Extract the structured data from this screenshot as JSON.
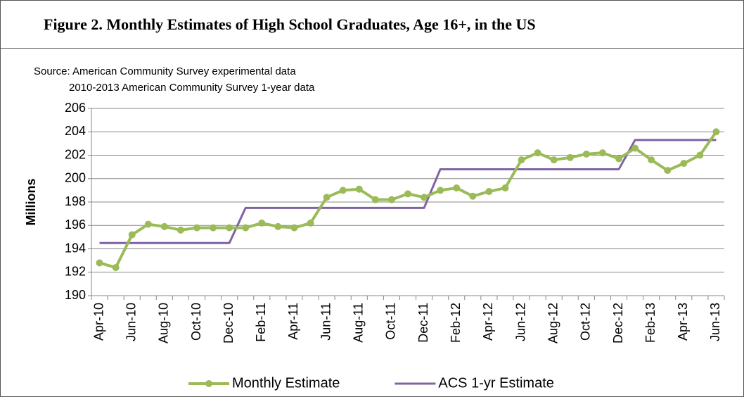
{
  "chart_data": {
    "type": "line",
    "title": "Figure 2.  Monthly Estimates of High School Graduates, Age 16+, in the US",
    "source": [
      "Source: American Community Survey experimental data",
      "2010-2013 American Community Survey 1-year data"
    ],
    "y_label": "Millions",
    "categories": [
      "Apr-10",
      null,
      "Jun-10",
      null,
      "Aug-10",
      null,
      "Oct-10",
      null,
      "Dec-10",
      null,
      "Feb-11",
      null,
      "Apr-11",
      null,
      "Jun-11",
      null,
      "Aug-11",
      null,
      "Oct-11",
      null,
      "Dec-11",
      null,
      "Feb-12",
      null,
      "Apr-12",
      null,
      "Jun-12",
      null,
      "Aug-12",
      null,
      "Oct-12",
      null,
      "Dec-12",
      null,
      "Feb-13",
      null,
      "Apr-13",
      null,
      "Jun-13"
    ],
    "series": [
      {
        "name": "Monthly Estimate",
        "color": "#9bbb59",
        "markers": true,
        "values": [
          192.8,
          192.4,
          195.2,
          196.1,
          195.9,
          195.6,
          195.8,
          195.8,
          195.8,
          195.8,
          196.2,
          195.9,
          195.8,
          196.2,
          198.4,
          199.0,
          199.1,
          198.2,
          198.2,
          198.7,
          198.4,
          199.0,
          199.2,
          198.5,
          198.9,
          199.2,
          201.6,
          202.2,
          201.6,
          201.8,
          202.1,
          202.2,
          201.7,
          202.6,
          201.6,
          200.7,
          201.3,
          202.0,
          204.0
        ]
      },
      {
        "name": "ACS 1-yr Estimate",
        "color": "#8064a2",
        "markers": false,
        "values": [
          194.5,
          194.5,
          194.5,
          194.5,
          194.5,
          194.5,
          194.5,
          194.5,
          194.5,
          197.5,
          197.5,
          197.5,
          197.5,
          197.5,
          197.5,
          197.5,
          197.5,
          197.5,
          197.5,
          197.5,
          197.5,
          200.8,
          200.8,
          200.8,
          200.8,
          200.8,
          200.8,
          200.8,
          200.8,
          200.8,
          200.8,
          200.8,
          200.8,
          203.3,
          203.3,
          203.3,
          203.3,
          203.3,
          203.3
        ]
      }
    ],
    "ylim": [
      190,
      206
    ],
    "yticks": [
      190,
      192,
      194,
      196,
      198,
      200,
      202,
      204,
      206
    ],
    "grid": true,
    "legend": "bottom"
  }
}
